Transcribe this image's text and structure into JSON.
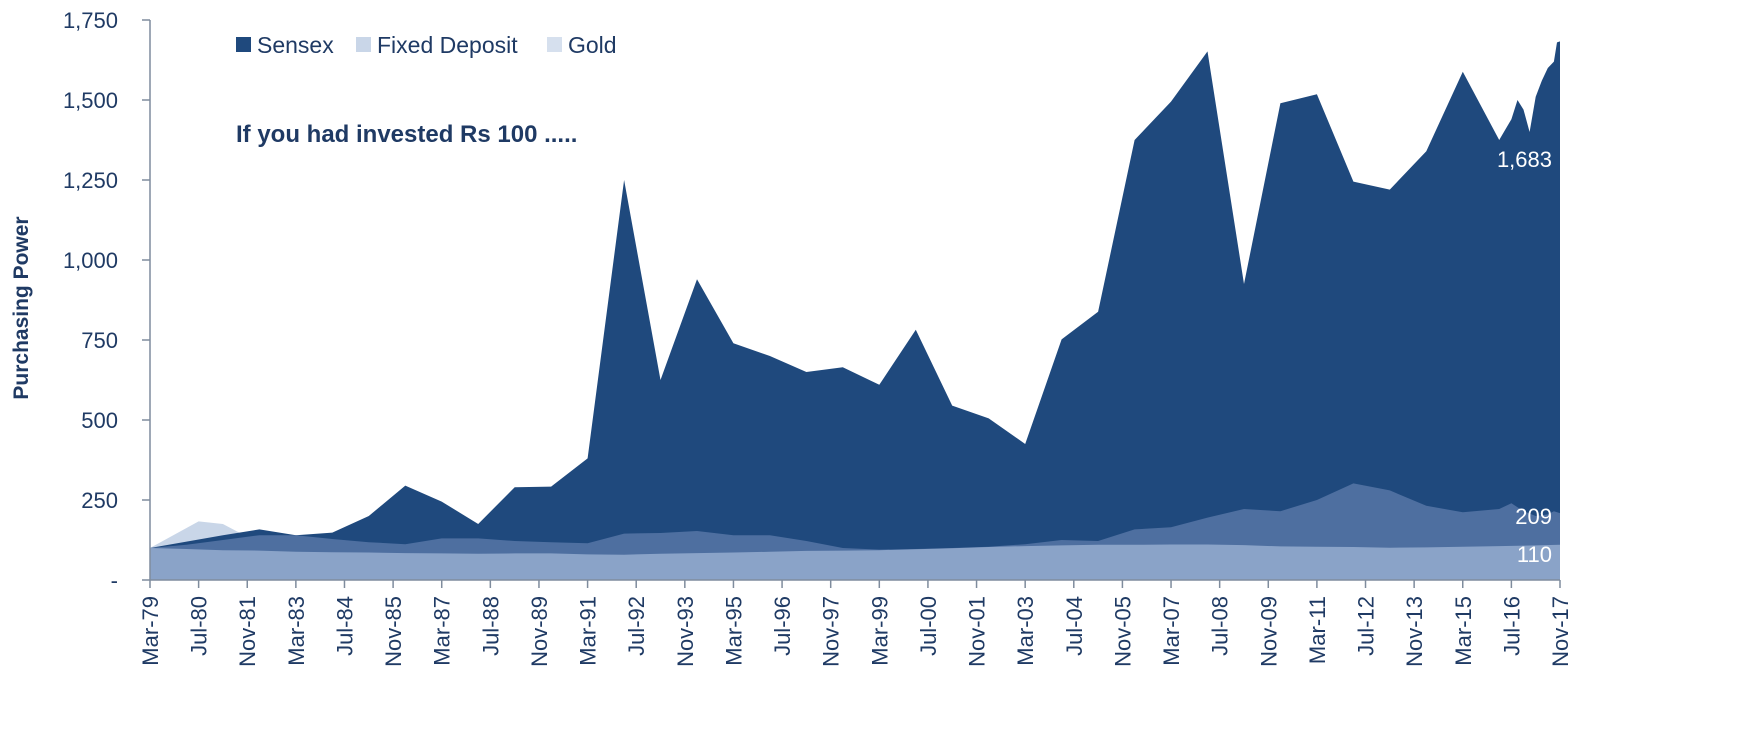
{
  "chart_data": {
    "type": "area",
    "title": "",
    "annotation": "If you had invested Rs 100 .....",
    "ylabel": "Purchasing Power",
    "xlabel": "",
    "ylim": [
      0,
      1750
    ],
    "y_ticks": [
      {
        "value": 0,
        "label": "-"
      },
      {
        "value": 250,
        "label": "250"
      },
      {
        "value": 500,
        "label": "500"
      },
      {
        "value": 750,
        "label": "750"
      },
      {
        "value": 1000,
        "label": "1,000"
      },
      {
        "value": 1250,
        "label": "1,250"
      },
      {
        "value": 1500,
        "label": "1,500"
      },
      {
        "value": 1750,
        "label": "1,750"
      }
    ],
    "x_ticks": [
      "Mar-79",
      "Jul-80",
      "Nov-81",
      "Mar-83",
      "Jul-84",
      "Nov-85",
      "Mar-87",
      "Jul-88",
      "Nov-89",
      "Mar-91",
      "Jul-92",
      "Nov-93",
      "Mar-95",
      "Jul-96",
      "Nov-97",
      "Mar-99",
      "Jul-00",
      "Nov-01",
      "Mar-03",
      "Jul-04",
      "Nov-05",
      "Mar-07",
      "Jul-08",
      "Nov-09",
      "Mar-11",
      "Jul-12",
      "Nov-13",
      "Mar-15",
      "Jul-16",
      "Nov-17"
    ],
    "legend_position": "top-left",
    "grid": false,
    "series": [
      {
        "name": "Sensex",
        "color": "#1f497d",
        "end_label": "1,683",
        "points": [
          [
            "Mar-79",
            100
          ],
          [
            "Mar-80",
            120
          ],
          [
            "Mar-81",
            140
          ],
          [
            "Mar-82",
            158
          ],
          [
            "Mar-83",
            140
          ],
          [
            "Mar-84",
            148
          ],
          [
            "Mar-85",
            200
          ],
          [
            "Mar-86",
            295
          ],
          [
            "Mar-87",
            245
          ],
          [
            "Mar-88",
            175
          ],
          [
            "Mar-89",
            290
          ],
          [
            "Mar-90",
            292
          ],
          [
            "Mar-91",
            380
          ],
          [
            "Mar-92",
            1250
          ],
          [
            "Mar-93",
            625
          ],
          [
            "Mar-94",
            940
          ],
          [
            "Mar-95",
            740
          ],
          [
            "Mar-96",
            700
          ],
          [
            "Mar-97",
            650
          ],
          [
            "Mar-98",
            665
          ],
          [
            "Mar-99",
            610
          ],
          [
            "Mar-00",
            782
          ],
          [
            "Mar-01",
            545
          ],
          [
            "Mar-02",
            505
          ],
          [
            "Mar-03",
            425
          ],
          [
            "Mar-04",
            752
          ],
          [
            "Mar-05",
            838
          ],
          [
            "Mar-06",
            1375
          ],
          [
            "Mar-07",
            1495
          ],
          [
            "Mar-08",
            1652
          ],
          [
            "Mar-09",
            925
          ],
          [
            "Mar-10",
            1490
          ],
          [
            "Mar-11",
            1518
          ],
          [
            "Mar-12",
            1245
          ],
          [
            "Mar-13",
            1220
          ],
          [
            "Mar-14",
            1340
          ],
          [
            "Mar-15",
            1588
          ],
          [
            "Mar-16",
            1375
          ],
          [
            "Jul-16",
            1440
          ],
          [
            "Sep-16",
            1500
          ],
          [
            "Nov-16",
            1470
          ],
          [
            "Jan-17",
            1400
          ],
          [
            "Mar-17",
            1510
          ],
          [
            "May-17",
            1560
          ],
          [
            "Jul-17",
            1600
          ],
          [
            "Sep-17",
            1620
          ],
          [
            "Oct-17",
            1680
          ],
          [
            "Nov-17",
            1683
          ]
        ]
      },
      {
        "name": "Fixed Deposit",
        "color": "#c9d6e8",
        "end_label": "209",
        "points": [
          [
            "Mar-79",
            100
          ],
          [
            "Mar-80",
            110
          ],
          [
            "Mar-81",
            125
          ],
          [
            "Mar-82",
            140
          ],
          [
            "Mar-83",
            140
          ],
          [
            "Mar-84",
            128
          ],
          [
            "Mar-85",
            118
          ],
          [
            "Mar-86",
            112
          ],
          [
            "Mar-87",
            130
          ],
          [
            "Mar-88",
            130
          ],
          [
            "Mar-89",
            122
          ],
          [
            "Mar-90",
            118
          ],
          [
            "Mar-91",
            115
          ],
          [
            "Mar-92",
            145
          ],
          [
            "Mar-93",
            147
          ],
          [
            "Mar-94",
            153
          ],
          [
            "Mar-95",
            140
          ],
          [
            "Mar-96",
            140
          ],
          [
            "Mar-97",
            122
          ],
          [
            "Mar-98",
            100
          ],
          [
            "Mar-99",
            95
          ],
          [
            "Mar-00",
            97
          ],
          [
            "Mar-01",
            100
          ],
          [
            "Mar-02",
            104
          ],
          [
            "Mar-03",
            112
          ],
          [
            "Mar-04",
            125
          ],
          [
            "Mar-05",
            122
          ],
          [
            "Mar-06",
            158
          ],
          [
            "Mar-07",
            165
          ],
          [
            "Mar-08",
            195
          ],
          [
            "Mar-09",
            222
          ],
          [
            "Mar-10",
            215
          ],
          [
            "Mar-11",
            250
          ],
          [
            "Mar-12",
            302
          ],
          [
            "Mar-13",
            280
          ],
          [
            "Mar-14",
            232
          ],
          [
            "Mar-15",
            212
          ],
          [
            "Mar-16",
            222
          ],
          [
            "Jul-16",
            240
          ],
          [
            "Nov-16",
            215
          ],
          [
            "Mar-17",
            200
          ],
          [
            "Jul-17",
            205
          ],
          [
            "Sep-17",
            215
          ],
          [
            "Nov-17",
            209
          ]
        ]
      },
      {
        "name": "Gold",
        "color": "#d6e0ee",
        "end_label": "110",
        "points": [
          [
            "Mar-79",
            100
          ],
          [
            "Mar-80",
            97
          ],
          [
            "Mar-81",
            93
          ],
          [
            "Mar-82",
            92
          ],
          [
            "Mar-83",
            88
          ],
          [
            "Mar-84",
            87
          ],
          [
            "Mar-85",
            86
          ],
          [
            "Mar-86",
            84
          ],
          [
            "Mar-87",
            83
          ],
          [
            "Mar-88",
            82
          ],
          [
            "Mar-89",
            83
          ],
          [
            "Mar-90",
            83
          ],
          [
            "Mar-91",
            80
          ],
          [
            "Mar-92",
            79
          ],
          [
            "Mar-93",
            82
          ],
          [
            "Mar-94",
            84
          ],
          [
            "Mar-95",
            86
          ],
          [
            "Mar-96",
            88
          ],
          [
            "Mar-97",
            91
          ],
          [
            "Mar-98",
            92
          ],
          [
            "Mar-99",
            93
          ],
          [
            "Mar-00",
            96
          ],
          [
            "Mar-01",
            99
          ],
          [
            "Mar-02",
            103
          ],
          [
            "Mar-03",
            106
          ],
          [
            "Mar-04",
            108
          ],
          [
            "Mar-05",
            110
          ],
          [
            "Mar-06",
            110
          ],
          [
            "Mar-07",
            111
          ],
          [
            "Mar-08",
            111
          ],
          [
            "Mar-09",
            109
          ],
          [
            "Mar-10",
            105
          ],
          [
            "Mar-11",
            104
          ],
          [
            "Mar-12",
            103
          ],
          [
            "Mar-13",
            101
          ],
          [
            "Mar-14",
            102
          ],
          [
            "Mar-15",
            104
          ],
          [
            "Mar-16",
            106
          ],
          [
            "Mar-17",
            108
          ],
          [
            "Nov-17",
            110
          ]
        ]
      }
    ],
    "early_peak": {
      "series": "Fixed Deposit",
      "points": [
        [
          "Jul-80",
          183
        ],
        [
          "Mar-81",
          175
        ],
        [
          "Mar-82",
          115
        ]
      ]
    },
    "legend": [
      {
        "label": "Sensex",
        "color": "#1f497d"
      },
      {
        "label": "Fixed Deposit",
        "color": "#c9d6e8"
      },
      {
        "label": "Gold",
        "color": "#d6e0ee"
      }
    ]
  }
}
